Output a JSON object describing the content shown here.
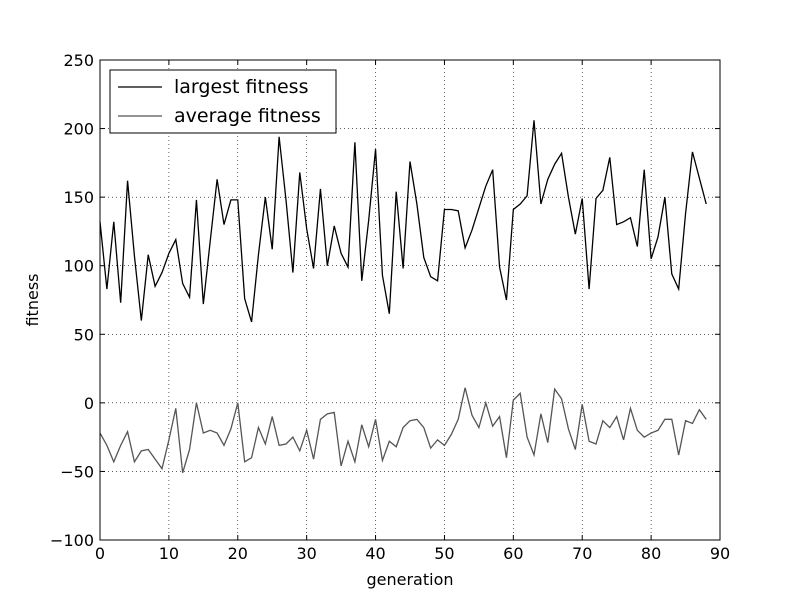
{
  "chart_data": {
    "type": "line",
    "title": "",
    "xlabel": "generation",
    "ylabel": "fitness",
    "xlim": [
      0,
      90
    ],
    "ylim": [
      -100,
      250
    ],
    "xticks": [
      0,
      10,
      20,
      30,
      40,
      50,
      60,
      70,
      80,
      90
    ],
    "yticks": [
      -100,
      -50,
      0,
      50,
      100,
      150,
      200,
      250
    ],
    "grid": true,
    "legend_position": "top-left",
    "x": [
      0,
      1,
      2,
      3,
      4,
      5,
      6,
      7,
      8,
      9,
      10,
      11,
      12,
      13,
      14,
      15,
      16,
      17,
      18,
      19,
      20,
      21,
      22,
      23,
      24,
      25,
      26,
      27,
      28,
      29,
      30,
      31,
      32,
      33,
      34,
      35,
      36,
      37,
      38,
      39,
      40,
      41,
      42,
      43,
      44,
      45,
      46,
      47,
      48,
      49,
      50,
      51,
      52,
      53,
      54,
      55,
      56,
      57,
      58,
      59,
      60,
      61,
      62,
      63,
      64,
      65,
      66,
      67,
      68,
      69,
      70,
      71,
      72,
      73,
      74,
      75,
      76,
      77,
      78,
      79,
      80,
      81,
      82,
      83,
      84,
      85,
      86,
      87,
      88
    ],
    "series": [
      {
        "name": "largest fitness",
        "color": "#000000",
        "values": [
          132,
          83,
          132,
          73,
          162,
          107,
          60,
          108,
          85,
          95,
          109,
          119,
          87,
          77,
          148,
          72,
          118,
          163,
          130,
          148,
          148,
          76,
          59,
          108,
          150,
          112,
          194,
          148,
          95,
          168,
          127,
          98,
          156,
          100,
          129,
          109,
          99,
          190,
          89,
          133,
          185,
          93,
          65,
          154,
          98,
          176,
          145,
          106,
          92,
          89,
          141,
          141,
          140,
          113,
          126,
          142,
          158,
          170,
          99,
          75,
          141,
          145,
          151,
          206,
          145,
          163,
          174,
          182,
          150,
          123,
          149,
          83,
          149,
          155,
          179,
          130,
          132,
          135,
          114,
          170,
          105,
          121,
          150,
          94,
          83,
          138,
          183,
          164,
          145
        ]
      },
      {
        "name": "average fitness",
        "color": "#555555",
        "values": [
          -22,
          -31,
          -43,
          -31,
          -21,
          -43,
          -35,
          -34,
          -41,
          -48,
          -27,
          -4,
          -51,
          -34,
          0,
          -22,
          -20,
          -22,
          -31,
          -19,
          0,
          -43,
          -40,
          -18,
          -30,
          -10,
          -31,
          -30,
          -25,
          -35,
          -20,
          -41,
          -12,
          -8,
          -7,
          -46,
          -28,
          -43,
          -16,
          -32,
          -12,
          -42,
          -28,
          -32,
          -18,
          -13,
          -12,
          -18,
          -33,
          -27,
          -31,
          -23,
          -12,
          11,
          -9,
          -18,
          0,
          -17,
          -10,
          -40,
          2,
          7,
          -25,
          -38,
          -8,
          -29,
          10,
          3,
          -19,
          -34,
          -1,
          -28,
          -30,
          -13,
          -18,
          -10,
          -27,
          -4,
          -20,
          -25,
          -22,
          -20,
          -12,
          -12,
          -38,
          -13,
          -15,
          -5,
          -12
        ]
      }
    ]
  }
}
